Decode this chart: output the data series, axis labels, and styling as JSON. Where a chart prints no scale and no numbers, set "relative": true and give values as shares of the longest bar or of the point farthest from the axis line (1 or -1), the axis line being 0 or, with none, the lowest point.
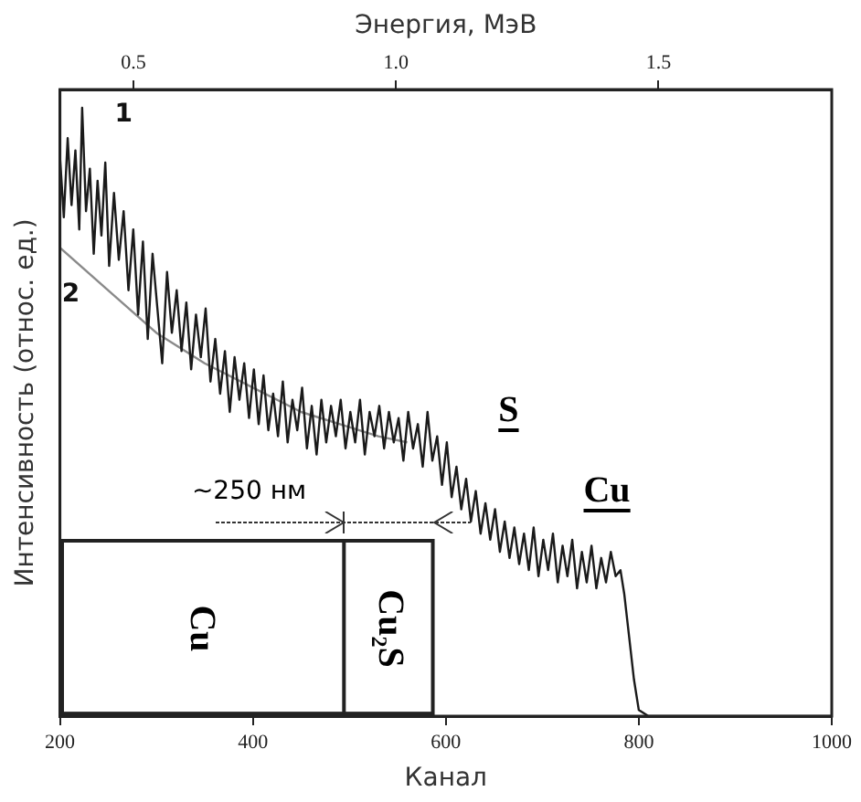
{
  "chart_data": {
    "type": "line",
    "relative": true,
    "x2label": "Энергия, МэВ",
    "xlabel": "Канал",
    "ylabel": "Интенсивность (относ. ед.)",
    "xlim": [
      200,
      1000
    ],
    "xticks": [
      200,
      400,
      600,
      800,
      1000
    ],
    "x2lim": [
      0.36,
      1.83
    ],
    "x2ticks": [
      0.5,
      {
        "value": 1,
        "label": "1.0"
      },
      1.5
    ],
    "grid": false,
    "legend": false,
    "marker": "none",
    "line_style": "solid",
    "series": [
      {
        "name": "1",
        "color": "#1a1a1a",
        "x": [
          200,
          204,
          208,
          212,
          216,
          220,
          223,
          227,
          231,
          235,
          239,
          243,
          247,
          251,
          256,
          261,
          266,
          271,
          276,
          281,
          286,
          291,
          296,
          301,
          306,
          311,
          316,
          321,
          326,
          331,
          336,
          341,
          346,
          351,
          356,
          361,
          366,
          371,
          376,
          381,
          386,
          391,
          396,
          401,
          406,
          411,
          416,
          421,
          426,
          431,
          436,
          441,
          446,
          451,
          456,
          461,
          466,
          471,
          476,
          481,
          486,
          491,
          496,
          501,
          506,
          511,
          516,
          521,
          526,
          531,
          536,
          541,
          546,
          551,
          556,
          561,
          566,
          571,
          576,
          581,
          586,
          591,
          596,
          601,
          606,
          611,
          616,
          621,
          626,
          631,
          636,
          641,
          646,
          651,
          656,
          661,
          666,
          671,
          676,
          681,
          686,
          691,
          696,
          701,
          706,
          711,
          716,
          721,
          726,
          731,
          736,
          741,
          746,
          751,
          756,
          761,
          766,
          771,
          776,
          781,
          785,
          790,
          795,
          800,
          810,
          850,
          900,
          950,
          1000
        ],
        "values": [
          0.92,
          0.82,
          0.95,
          0.84,
          0.93,
          0.8,
          1.0,
          0.83,
          0.9,
          0.76,
          0.88,
          0.79,
          0.91,
          0.74,
          0.86,
          0.75,
          0.83,
          0.7,
          0.8,
          0.66,
          0.78,
          0.62,
          0.76,
          0.67,
          0.58,
          0.73,
          0.63,
          0.7,
          0.6,
          0.68,
          0.57,
          0.66,
          0.59,
          0.67,
          0.55,
          0.62,
          0.53,
          0.6,
          0.5,
          0.59,
          0.52,
          0.58,
          0.49,
          0.57,
          0.48,
          0.56,
          0.47,
          0.53,
          0.46,
          0.55,
          0.45,
          0.52,
          0.47,
          0.54,
          0.44,
          0.51,
          0.43,
          0.52,
          0.45,
          0.51,
          0.46,
          0.52,
          0.44,
          0.5,
          0.45,
          0.52,
          0.43,
          0.5,
          0.46,
          0.51,
          0.44,
          0.5,
          0.45,
          0.49,
          0.42,
          0.5,
          0.44,
          0.48,
          0.41,
          0.5,
          0.42,
          0.46,
          0.38,
          0.45,
          0.36,
          0.41,
          0.34,
          0.39,
          0.32,
          0.37,
          0.3,
          0.35,
          0.29,
          0.34,
          0.27,
          0.32,
          0.26,
          0.31,
          0.25,
          0.3,
          0.24,
          0.31,
          0.23,
          0.29,
          0.24,
          0.3,
          0.22,
          0.28,
          0.23,
          0.29,
          0.21,
          0.27,
          0.22,
          0.28,
          0.21,
          0.26,
          0.22,
          0.27,
          0.23,
          0.24,
          0.2,
          0.13,
          0.06,
          0.01,
          0,
          0,
          0,
          0,
          0
        ]
      },
      {
        "name": "2",
        "color": "#8a8a8a",
        "x": [
          200,
          250,
          300,
          350,
          400,
          450,
          500,
          530,
          560
        ],
        "values": [
          0.77,
          0.7,
          0.63,
          0.58,
          0.54,
          0.5,
          0.475,
          0.46,
          0.45
        ]
      }
    ],
    "annotations": [
      "S",
      "Cu",
      "~250 нм",
      "Cu",
      "Cu₂S"
    ]
  }
}
